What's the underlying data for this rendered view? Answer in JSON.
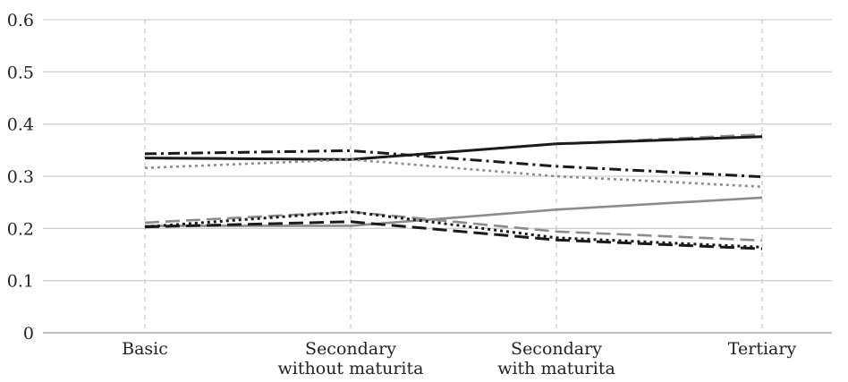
{
  "chart_data": {
    "type": "line",
    "categories": [
      [
        "Basic"
      ],
      [
        "Secondary",
        "without maturita"
      ],
      [
        "Secondary",
        "with maturita"
      ],
      [
        "Tertiary"
      ]
    ],
    "ylim": [
      0,
      0.6
    ],
    "yticks": [
      "0",
      "0.1",
      "0.2",
      "0.3",
      "0.4",
      "0.5",
      "0.6"
    ],
    "grid": {
      "horizontal": true,
      "vertical_dashed": true
    },
    "series": [
      {
        "values": [
          0.335,
          0.332,
          0.362,
          0.38
        ],
        "color": "#8c8c8c",
        "dash": "long-dash"
      },
      {
        "values": [
          0.335,
          0.332,
          0.362,
          0.376
        ],
        "color": "#1a1a1a",
        "dash": "solid"
      },
      {
        "values": [
          0.343,
          0.349,
          0.319,
          0.299
        ],
        "color": "#1a1a1a",
        "dash": "dash-dot"
      },
      {
        "values": [
          0.316,
          0.332,
          0.3,
          0.28
        ],
        "color": "#8c8c8c",
        "dash": "dotted"
      },
      {
        "values": [
          0.205,
          0.205,
          0.236,
          0.259
        ],
        "color": "#8c8c8c",
        "dash": "solid"
      },
      {
        "values": [
          0.211,
          0.232,
          0.194,
          0.177
        ],
        "color": "#8c8c8c",
        "dash": "long-dash"
      },
      {
        "values": [
          0.203,
          0.232,
          0.182,
          0.164
        ],
        "color": "#1a1a1a",
        "dash": "dotted"
      },
      {
        "values": [
          0.203,
          0.213,
          0.178,
          0.161
        ],
        "color": "#1a1a1a",
        "dash": "long-dash"
      }
    ]
  }
}
